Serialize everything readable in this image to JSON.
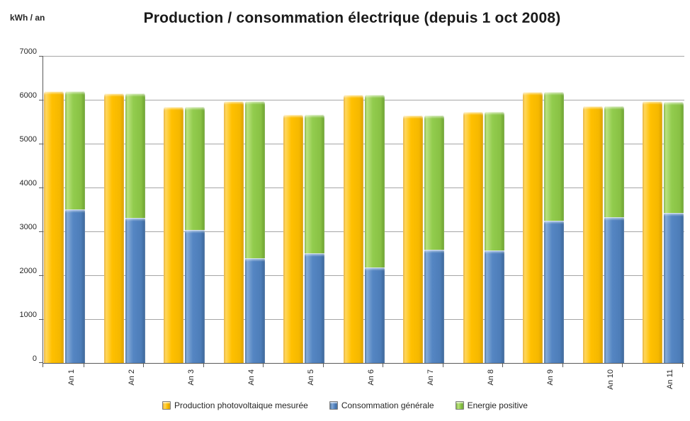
{
  "chart_data": {
    "type": "bar",
    "title": "Production / consommation électrique (depuis 1 oct 2008)",
    "ylabel": "kWh / an",
    "ylim": [
      0,
      7000
    ],
    "ytick_interval": 1000,
    "ytick_labels": [
      "0",
      "1000",
      "2000",
      "3000",
      "4000",
      "5000",
      "6000",
      "7000"
    ],
    "grid": "horizontal",
    "legend_position": "bottom",
    "categories": [
      "An 1",
      "An 2",
      "An 3",
      "An 4",
      "An 5",
      "An 6",
      "An 7",
      "An 8",
      "An 9",
      "An 10",
      "An 11"
    ],
    "series": [
      {
        "name": "Production photovoltaique mesurée",
        "role": "grouped",
        "color": "#FFC000",
        "values": [
          6200,
          6150,
          5840,
          5970,
          5660,
          6110,
          5640,
          5730,
          6180,
          5860,
          5960
        ]
      },
      {
        "name": "Consommation générale",
        "role": "stacked-bottom",
        "color": "#4F81BD",
        "values": [
          3500,
          3310,
          3030,
          2390,
          2500,
          2170,
          2580,
          2560,
          3240,
          3320,
          3420
        ]
      },
      {
        "name": "Energie positive",
        "role": "stacked-top",
        "color": "#92CC4E",
        "values": [
          2700,
          2840,
          2810,
          3580,
          3160,
          3940,
          3060,
          3170,
          2940,
          2540,
          2540
        ]
      }
    ]
  },
  "colors": {
    "gridline": "#A6A6A6",
    "axis": "#595959",
    "text": "#262626"
  }
}
